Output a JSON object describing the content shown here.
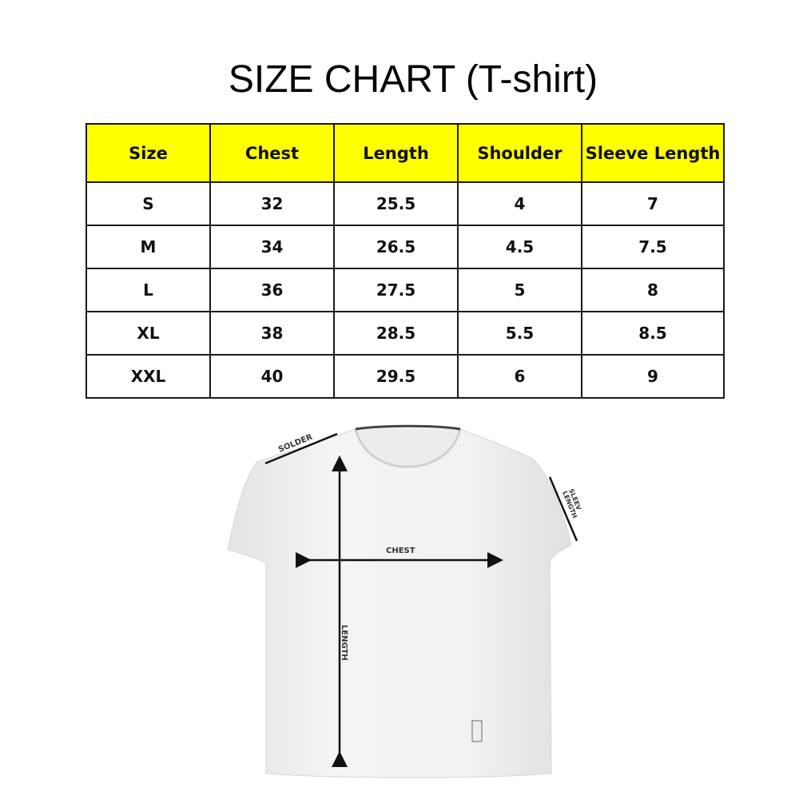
{
  "title": "SIZE CHART (T-shirt)",
  "table": {
    "headers": [
      "Size",
      "Chest",
      "Length",
      "Shoulder",
      "Sleeve Length"
    ],
    "rows": [
      [
        "S",
        "32",
        "25.5",
        "4",
        "7"
      ],
      [
        "M",
        "34",
        "26.5",
        "4.5",
        "7.5"
      ],
      [
        "L",
        "36",
        "27.5",
        "5",
        "8"
      ],
      [
        "XL",
        "38",
        "28.5",
        "5.5",
        "8.5"
      ],
      [
        "XXL",
        "40",
        "29.5",
        "6",
        "9"
      ]
    ],
    "header_color": "#ffff00"
  },
  "diagram": {
    "labels": {
      "shoulder": "SOLDER",
      "sleeve_line1": "SLEEV",
      "sleeve_line2": "LENGTH",
      "chest": "CHEST",
      "length": "LENGTH"
    }
  }
}
